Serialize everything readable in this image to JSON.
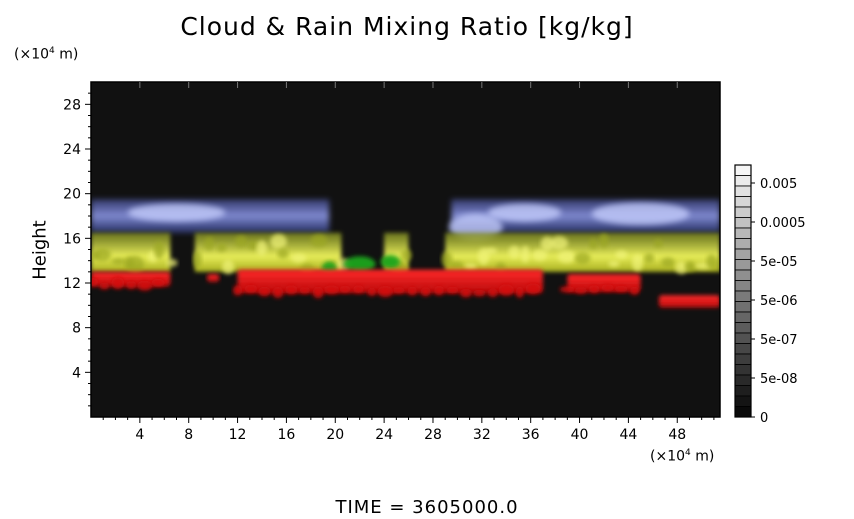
{
  "chart_data": {
    "type": "heatmap",
    "title": "Cloud & Rain Mixing Ratio [kg/kg]",
    "ylabel": "Height",
    "y_unit_label": "(×10",
    "y_unit_exp": "4",
    "y_unit_suffix": " m)",
    "x_unit_label": "(×10",
    "x_unit_exp": "4",
    "x_unit_suffix": " m)",
    "xlim": [
      0,
      51.5
    ],
    "ylim": [
      0,
      30
    ],
    "xticks": [
      4,
      8,
      12,
      16,
      20,
      24,
      28,
      32,
      36,
      40,
      44,
      48
    ],
    "yticks": [
      4,
      8,
      12,
      16,
      20,
      24,
      28
    ],
    "background_color": "#111111",
    "layers": [
      {
        "name": "blue",
        "color": "#7f8fe6",
        "y_range": [
          16.5,
          19.5
        ]
      },
      {
        "name": "yellow",
        "color": "#d6e04a",
        "y_range": [
          13,
          16.5
        ]
      },
      {
        "name": "red",
        "color": "#e01515",
        "y_range": [
          11.5,
          13
        ]
      }
    ],
    "colorbar": {
      "labels": [
        "0.005",
        "0.0005",
        "5e-05",
        "5e-06",
        "5e-07",
        "5e-08",
        "0"
      ]
    },
    "footer": "TIME = 3605000.0"
  }
}
